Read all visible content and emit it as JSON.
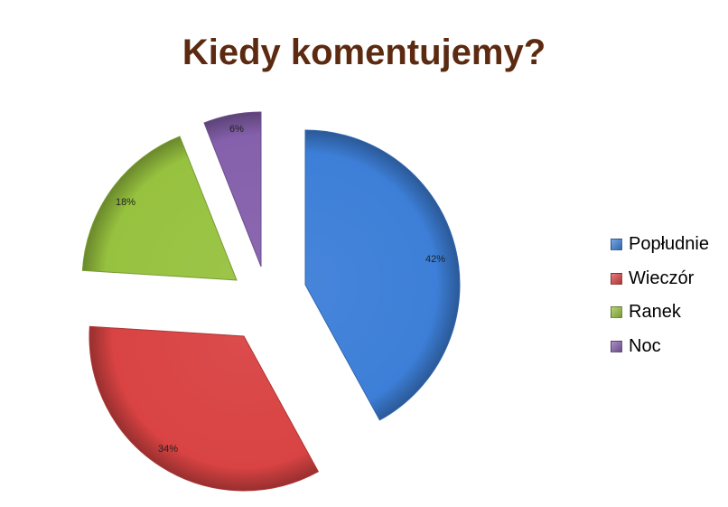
{
  "chart_data": {
    "type": "pie",
    "title": "Kiedy komentujemy?",
    "categories": [
      "Popłudnie",
      "Wieczór",
      "Ranek",
      "Noc"
    ],
    "values": [
      42,
      34,
      18,
      6
    ],
    "data_labels": [
      "42%",
      "34%",
      "18%",
      "6%"
    ],
    "colors": [
      "#3d7fd8",
      "#d94343",
      "#97c23f",
      "#8560ac"
    ],
    "exploded": true,
    "legend_position": "right"
  }
}
